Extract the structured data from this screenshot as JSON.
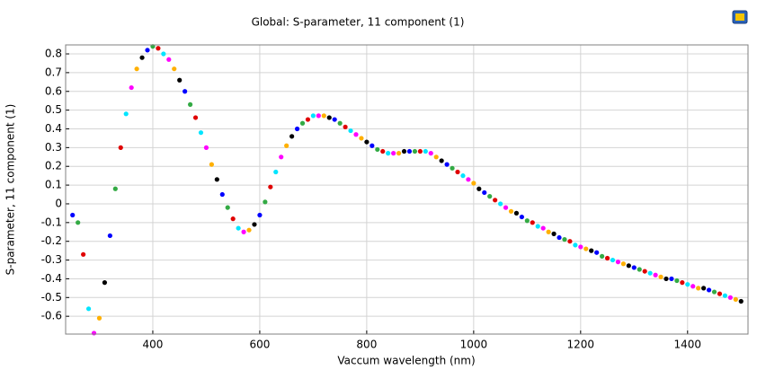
{
  "chart_data": {
    "type": "scatter",
    "title": "Global: S-parameter, 11 component (1)",
    "x_label": "Vaccum wavelength (nm)",
    "y_label": "S-parameter, 11 component (1)",
    "x": [
      250,
      260,
      270,
      280,
      290,
      300,
      310,
      320,
      330,
      340,
      350,
      360,
      370,
      380,
      390,
      400,
      410,
      420,
      430,
      440,
      450,
      460,
      470,
      480,
      490,
      500,
      510,
      520,
      530,
      540,
      550,
      560,
      570,
      580,
      590,
      600,
      610,
      620,
      630,
      640,
      650,
      660,
      670,
      680,
      690,
      700,
      710,
      720,
      730,
      740,
      750,
      760,
      770,
      780,
      790,
      800,
      810,
      820,
      830,
      840,
      850,
      860,
      870,
      880,
      890,
      900,
      910,
      920,
      930,
      940,
      950,
      960,
      970,
      980,
      990,
      1000,
      1010,
      1020,
      1030,
      1040,
      1050,
      1060,
      1070,
      1080,
      1090,
      1100,
      1110,
      1120,
      1130,
      1140,
      1150,
      1160,
      1170,
      1180,
      1190,
      1200,
      1210,
      1220,
      1230,
      1240,
      1250,
      1260,
      1270,
      1280,
      1290,
      1300,
      1310,
      1320,
      1330,
      1340,
      1350,
      1360,
      1370,
      1380,
      1390,
      1400,
      1410,
      1420,
      1430,
      1440,
      1450,
      1460,
      1470,
      1480,
      1490,
      1500
    ],
    "values": [
      -0.06,
      -0.1,
      -0.27,
      -0.56,
      -0.69,
      -0.61,
      -0.42,
      -0.17,
      0.08,
      0.3,
      0.48,
      0.62,
      0.72,
      0.78,
      0.82,
      0.84,
      0.83,
      0.8,
      0.77,
      0.72,
      0.66,
      0.6,
      0.53,
      0.46,
      0.38,
      0.3,
      0.21,
      0.13,
      0.05,
      -0.02,
      -0.08,
      -0.13,
      -0.15,
      -0.14,
      -0.11,
      -0.06,
      0.01,
      0.09,
      0.17,
      0.25,
      0.31,
      0.36,
      0.4,
      0.43,
      0.45,
      0.47,
      0.47,
      0.47,
      0.46,
      0.45,
      0.43,
      0.41,
      0.39,
      0.37,
      0.35,
      0.33,
      0.31,
      0.29,
      0.28,
      0.27,
      0.27,
      0.27,
      0.28,
      0.28,
      0.28,
      0.28,
      0.28,
      0.27,
      0.25,
      0.23,
      0.21,
      0.19,
      0.17,
      0.15,
      0.13,
      0.11,
      0.08,
      0.06,
      0.04,
      0.02,
      0.0,
      -0.02,
      -0.04,
      -0.05,
      -0.07,
      -0.09,
      -0.1,
      -0.12,
      -0.13,
      -0.15,
      -0.16,
      -0.18,
      -0.19,
      -0.2,
      -0.22,
      -0.23,
      -0.24,
      -0.25,
      -0.26,
      -0.28,
      -0.29,
      -0.3,
      -0.31,
      -0.32,
      -0.33,
      -0.34,
      -0.35,
      -0.36,
      -0.37,
      -0.38,
      -0.39,
      -0.4,
      -0.4,
      -0.41,
      -0.42,
      -0.43,
      -0.44,
      -0.45,
      -0.45,
      -0.46,
      -0.47,
      -0.48,
      -0.49,
      -0.5,
      -0.51,
      -0.52
    ],
    "color_cycle": [
      "#0000ff",
      "#33aa44",
      "#e00000",
      "#00e5ff",
      "#ff00ff",
      "#ffb000",
      "#000000"
    ],
    "xlim": [
      237,
      1513
    ],
    "ylim": [
      -0.695,
      0.848
    ],
    "xticks": [
      400,
      600,
      800,
      1000,
      1200,
      1400
    ],
    "yticks": [
      -0.6,
      -0.5,
      -0.4,
      -0.3,
      -0.2,
      -0.1,
      0,
      0.1,
      0.2,
      0.3,
      0.4,
      0.5,
      0.6,
      0.7,
      0.8
    ],
    "grid": true
  }
}
